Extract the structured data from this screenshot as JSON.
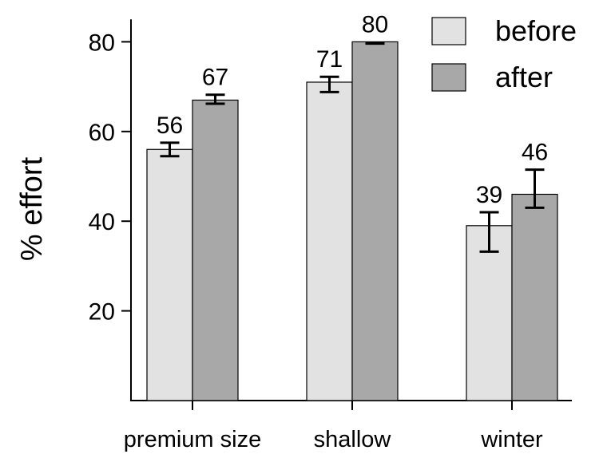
{
  "chart_data": {
    "type": "bar",
    "title": "",
    "xlabel": "",
    "ylabel": "% effort",
    "ylim": [
      0,
      85
    ],
    "yticks": [
      20,
      40,
      60,
      80
    ],
    "grid": false,
    "legend_position": "top-right",
    "categories": [
      "premium size",
      "shallow",
      "winter"
    ],
    "series": [
      {
        "name": "before",
        "color": "#e2e2e2",
        "values": [
          56,
          71,
          39
        ],
        "error_low": [
          54.5,
          68.8,
          33.2
        ],
        "error_high": [
          57.5,
          72.2,
          42
        ]
      },
      {
        "name": "after",
        "color": "#a8a8a8",
        "values": [
          67,
          80,
          46
        ],
        "error_low": [
          66.2,
          79.6,
          43
        ],
        "error_high": [
          68.2,
          79.8,
          51.5
        ]
      }
    ],
    "data_labels": [
      [
        "56",
        "71",
        "39"
      ],
      [
        "67",
        "80",
        "46"
      ]
    ]
  }
}
